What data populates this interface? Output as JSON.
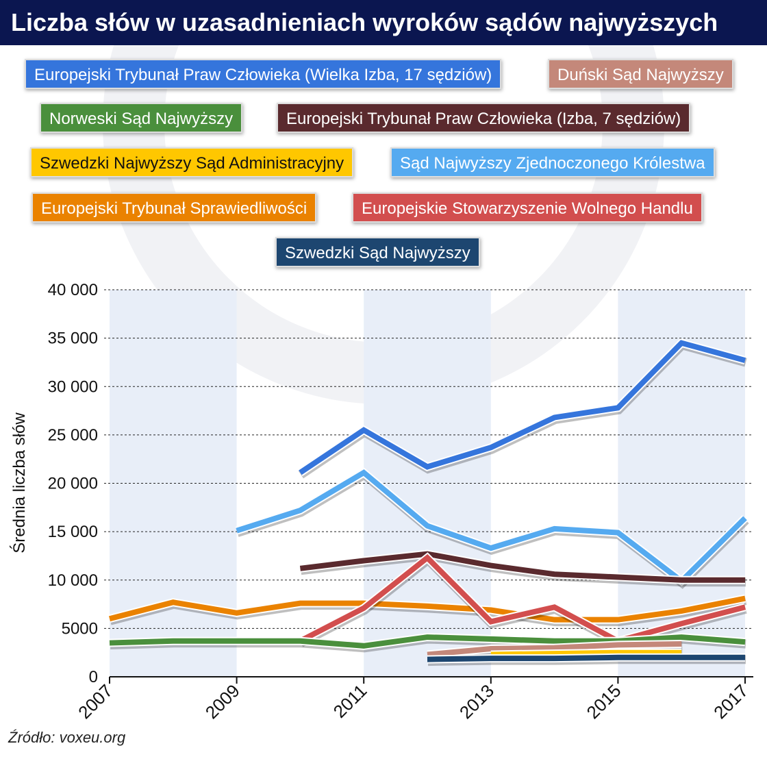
{
  "chart_data": {
    "type": "line",
    "title": "Liczba słów w uzasadnieniach wyroków sądów najwyższych",
    "ylabel": "Średnia liczba słów",
    "xlabel": "",
    "ylim": [
      0,
      40000
    ],
    "yticks": [
      "0",
      "5000",
      "10 000",
      "15 000",
      "20 000",
      "25 000",
      "30 000",
      "35 000",
      "40 000"
    ],
    "xticks": [
      "2007",
      "2009",
      "2011",
      "2013",
      "2015",
      "2017"
    ],
    "grid": "horizontal dotted",
    "legend": "top",
    "series": [
      {
        "name": "Europejski Trybunał Praw Człowieka (Wielka Izba, 17 sędziów)",
        "color": "#3575dc",
        "x": [
          2010,
          2011,
          2012,
          2013,
          2014,
          2015,
          2016,
          2017
        ],
        "values": [
          21100,
          25500,
          21700,
          23700,
          26800,
          27800,
          34500,
          32700
        ]
      },
      {
        "name": "Duński Sąd Najwyższy",
        "color": "#c4887a",
        "x": [
          2012,
          2013,
          2014,
          2015,
          2016
        ],
        "values": [
          2300,
          2900,
          3000,
          3300,
          3400
        ]
      },
      {
        "name": "Norweski Sąd Najwyższy",
        "color": "#4a8f3c",
        "x": [
          2007,
          2008,
          2009,
          2010,
          2011,
          2012,
          2013,
          2014,
          2015,
          2016,
          2017
        ],
        "values": [
          3500,
          3700,
          3700,
          3700,
          3200,
          4100,
          3900,
          3700,
          3700,
          4100,
          3600
        ]
      },
      {
        "name": "Europejski Trybunał Praw Człowieka (Izba, 7 sędziów)",
        "color": "#5a2a2e",
        "x": [
          2010,
          2011,
          2012,
          2013,
          2014,
          2015,
          2016,
          2017
        ],
        "values": [
          11200,
          12000,
          12700,
          11500,
          10600,
          10300,
          10000,
          10000
        ]
      },
      {
        "name": "Szwedzki Najwyższy Sąd Administracyjny",
        "color": "#ffc700",
        "x": [
          2013,
          2014,
          2015,
          2016
        ],
        "values": [
          2300,
          2400,
          2500,
          2500
        ]
      },
      {
        "name": "Sąd Najwyższy Zjednoczonego Królestwa",
        "color": "#55aaf0",
        "x": [
          2009,
          2010,
          2011,
          2012,
          2013,
          2014,
          2015,
          2016,
          2017
        ],
        "values": [
          15100,
          17200,
          21100,
          15600,
          13300,
          15300,
          14900,
          9900,
          16400
        ]
      },
      {
        "name": "Europejski Trybunał Sprawiedliwości",
        "color": "#ea8200",
        "x": [
          2007,
          2008,
          2009,
          2010,
          2011,
          2012,
          2013,
          2014,
          2015,
          2016,
          2017
        ],
        "values": [
          6000,
          7700,
          6600,
          7600,
          7600,
          7300,
          6900,
          5900,
          5900,
          6800,
          8100
        ]
      },
      {
        "name": "Europejskie Stowarzyszenie Wolnego Handlu",
        "color": "#d24e4e",
        "x": [
          2010,
          2011,
          2012,
          2013,
          2014,
          2015,
          2016,
          2017
        ],
        "values": [
          3700,
          7100,
          12300,
          5700,
          7200,
          3700,
          5500,
          7200
        ]
      },
      {
        "name": "Szwedzki Sąd Najwyższy",
        "color": "#1d4670",
        "x": [
          2012,
          2013,
          2014,
          2015,
          2016,
          2017
        ],
        "values": [
          1800,
          1900,
          1900,
          2000,
          2000,
          2000
        ]
      }
    ]
  },
  "source": "Źródło: voxeu.org"
}
